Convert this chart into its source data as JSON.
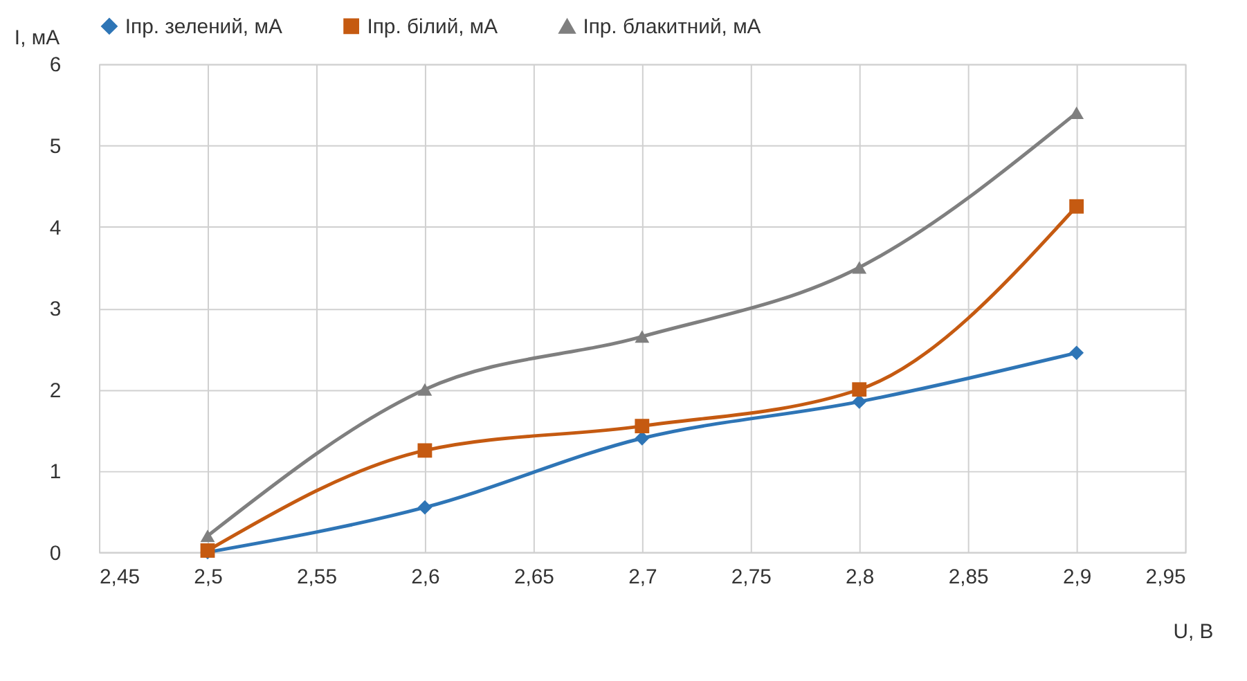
{
  "chart_data": {
    "type": "line",
    "xlabel": "U, B",
    "ylabel": "I, мА",
    "x": [
      2.5,
      2.6,
      2.7,
      2.8,
      2.9
    ],
    "series": [
      {
        "name": "Іпр. зелений, мА",
        "color": "#2e75b6",
        "marker": "diamond",
        "values": [
          0,
          0.55,
          1.4,
          1.85,
          2.45
        ]
      },
      {
        "name": "Іпр. білий, мА",
        "color": "#c55a11",
        "marker": "square",
        "values": [
          0.02,
          1.25,
          1.55,
          2.0,
          4.25
        ]
      },
      {
        "name": "Іпр. блакитний, мА",
        "color": "#7f7f7f",
        "marker": "triangle",
        "values": [
          0.2,
          2.0,
          2.65,
          3.5,
          5.4
        ]
      }
    ],
    "xlim": [
      2.45,
      2.95
    ],
    "xticks": [
      {
        "value": 2.45,
        "label": "2,45"
      },
      {
        "value": 2.5,
        "label": "2,5"
      },
      {
        "value": 2.55,
        "label": "2,55"
      },
      {
        "value": 2.6,
        "label": "2,6"
      },
      {
        "value": 2.65,
        "label": "2,65"
      },
      {
        "value": 2.7,
        "label": "2,7"
      },
      {
        "value": 2.75,
        "label": "2,75"
      },
      {
        "value": 2.8,
        "label": "2,8"
      },
      {
        "value": 2.85,
        "label": "2,85"
      },
      {
        "value": 2.9,
        "label": "2,9"
      },
      {
        "value": 2.95,
        "label": "2,95"
      }
    ],
    "ylim": [
      0,
      6
    ],
    "yticks": [
      0,
      1,
      2,
      3,
      4,
      5,
      6
    ],
    "grid": true,
    "legend": "top",
    "line_style": "solid"
  }
}
